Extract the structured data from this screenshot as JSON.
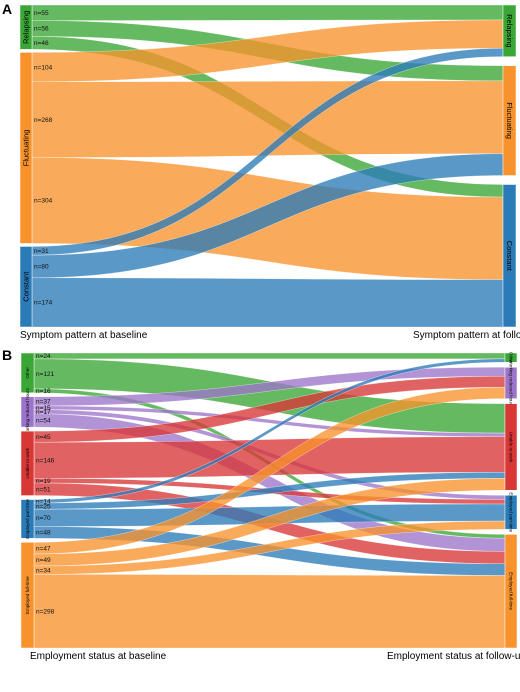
{
  "colors": {
    "relapsing": "#3aa635",
    "fluctuating": "#f7922c",
    "constant": "#2b7bb9",
    "other": "#3aa635",
    "working_reduced": "#9c74c9",
    "unable": "#d93636",
    "employed_part": "#2b7bb9",
    "employed_full": "#f7922c"
  },
  "panel_a": {
    "letter": "A",
    "left_caption": "Symptom pattern at baseline",
    "right_caption": "Symptom pattern at follow-up",
    "left_nodes": [
      {
        "key": "relapsing",
        "label": "Relapsing"
      },
      {
        "key": "fluctuating",
        "label": "Fluctuating"
      },
      {
        "key": "constant",
        "label": "Constant"
      }
    ],
    "right_nodes": [
      {
        "key": "relapsing",
        "label": "Relapsing"
      },
      {
        "key": "fluctuating",
        "label": "Fluctuating"
      },
      {
        "key": "constant",
        "label": "Constant"
      }
    ],
    "flows": [
      {
        "from": "relapsing",
        "to": "relapsing",
        "n": "n=55"
      },
      {
        "from": "relapsing",
        "to": "fluctuating",
        "n": "n=56"
      },
      {
        "from": "relapsing",
        "to": "constant",
        "n": "n=46"
      },
      {
        "from": "fluctuating",
        "to": "relapsing",
        "n": "n=104"
      },
      {
        "from": "fluctuating",
        "to": "fluctuating",
        "n": "n=268"
      },
      {
        "from": "fluctuating",
        "to": "constant",
        "n": "n=304"
      },
      {
        "from": "constant",
        "to": "relapsing",
        "n": "n=31"
      },
      {
        "from": "constant",
        "to": "fluctuating",
        "n": "n=80"
      },
      {
        "from": "constant",
        "to": "constant",
        "n": "n=174"
      }
    ]
  },
  "panel_b": {
    "letter": "B",
    "left_caption": "Employment status at baseline",
    "right_caption": "Employment status at follow-up",
    "left_nodes": [
      {
        "key": "other",
        "label": "Other"
      },
      {
        "key": "working_reduced",
        "label": "Working reduced hours"
      },
      {
        "key": "unable",
        "label": "Unable to work"
      },
      {
        "key": "employed_part",
        "label": "Employed part-time"
      },
      {
        "key": "employed_full",
        "label": "Employed full-time"
      }
    ],
    "right_nodes": [
      {
        "key": "other",
        "label": "Other"
      },
      {
        "key": "working_reduced",
        "label": "Working reduced hours"
      },
      {
        "key": "unable",
        "label": "Unable to work"
      },
      {
        "key": "employed_part",
        "label": "Employed part-time"
      },
      {
        "key": "employed_full",
        "label": "Employed full-time"
      }
    ],
    "flows": [
      {
        "from": "other",
        "to": "other",
        "n": "n=24"
      },
      {
        "from": "other",
        "to": "unable",
        "n": "n=121"
      },
      {
        "from": "other",
        "to": "employed_full",
        "n": "n=16"
      },
      {
        "from": "working_reduced",
        "to": "working_reduced",
        "n": "n=37"
      },
      {
        "from": "working_reduced",
        "to": "unable",
        "n": "n=15"
      },
      {
        "from": "working_reduced",
        "to": "employed_part",
        "n": "n=17"
      },
      {
        "from": "working_reduced",
        "to": "employed_full",
        "n": "n=54"
      },
      {
        "from": "unable",
        "to": "working_reduced",
        "n": "n=45"
      },
      {
        "from": "unable",
        "to": "unable",
        "n": "n=146"
      },
      {
        "from": "unable",
        "to": "employed_part",
        "n": "n=19"
      },
      {
        "from": "unable",
        "to": "employed_full",
        "n": "n=51"
      },
      {
        "from": "employed_part",
        "to": "other",
        "n": "n=14"
      },
      {
        "from": "employed_part",
        "to": "unable",
        "n": "n=25"
      },
      {
        "from": "employed_part",
        "to": "employed_part",
        "n": "n=70"
      },
      {
        "from": "employed_part",
        "to": "employed_full",
        "n": "n=48"
      },
      {
        "from": "employed_full",
        "to": "working_reduced",
        "n": "n=47"
      },
      {
        "from": "employed_full",
        "to": "unable",
        "n": "n=49"
      },
      {
        "from": "employed_full",
        "to": "employed_part",
        "n": "n=34"
      },
      {
        "from": "employed_full",
        "to": "employed_full",
        "n": "n=298"
      }
    ]
  }
}
